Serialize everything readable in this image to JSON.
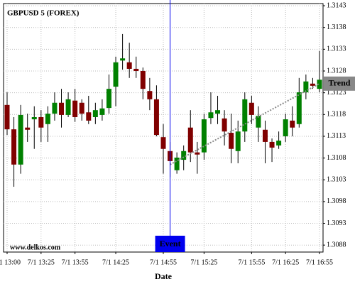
{
  "chart_data": {
    "type": "candlestick",
    "title": "GBPUSD 5 (FOREX)",
    "watermark": "www.delkos.com",
    "x_label": "Date",
    "categories": [
      "7/1 13:00",
      null,
      null,
      null,
      null,
      "7/1 13:25",
      null,
      null,
      null,
      null,
      "7/1 13:55",
      null,
      null,
      null,
      null,
      null,
      "7/1 14:25",
      null,
      null,
      null,
      null,
      null,
      null,
      "7/1 14:55",
      null,
      null,
      null,
      null,
      null,
      "7/1 15:25",
      null,
      null,
      null,
      null,
      null,
      null,
      "7/1 15:55",
      null,
      null,
      null,
      null,
      "7/1 16:25",
      null,
      null,
      null,
      null,
      "7/1 16:55"
    ],
    "open": [
      1.31202,
      1.31146,
      1.31065,
      1.3115,
      1.31169,
      1.31174,
      1.31158,
      1.31182,
      1.31207,
      1.31179,
      1.31212,
      1.31207,
      1.31185,
      1.31174,
      1.31179,
      1.31195,
      1.31244,
      1.31304,
      1.313,
      1.31285,
      1.3128,
      1.31234,
      1.31215,
      1.31128,
      1.31096,
      1.31052,
      1.31076,
      1.3115,
      1.31093,
      1.31093,
      1.31172,
      1.31182,
      1.31171,
      1.31138,
      1.31096,
      1.31141,
      1.31207,
      1.3115,
      1.31145,
      1.31117,
      1.31109,
      1.3113,
      1.31166,
      1.31158,
      1.31231,
      1.31251,
      1.31239
    ],
    "high": [
      1.31231,
      1.31174,
      1.31202,
      1.31182,
      1.31199,
      1.3119,
      1.31199,
      1.31231,
      1.31239,
      1.31231,
      1.31239,
      1.31215,
      1.31223,
      1.31207,
      1.31215,
      1.31272,
      1.31313,
      1.31365,
      1.31345,
      1.31313,
      1.31288,
      1.31264,
      1.31247,
      1.31158,
      1.31117,
      1.31093,
      1.31109,
      1.3119,
      1.31117,
      1.31182,
      1.31231,
      1.31223,
      1.3119,
      1.31182,
      1.31166,
      1.31231,
      1.31223,
      1.31199,
      1.31166,
      1.31125,
      1.31141,
      1.31182,
      1.31199,
      1.31264,
      1.31272,
      1.31264,
      1.31326
    ],
    "low": [
      1.31133,
      1.31014,
      1.31044,
      1.31117,
      1.31101,
      1.31117,
      1.31117,
      1.31166,
      1.3115,
      1.31174,
      1.31163,
      1.31166,
      1.31158,
      1.31158,
      1.31166,
      1.31182,
      1.31199,
      1.31283,
      1.31264,
      1.31264,
      1.31215,
      1.3119,
      1.3113,
      1.31044,
      1.31036,
      1.31044,
      1.31052,
      1.31071,
      1.31044,
      1.31076,
      1.31158,
      1.31158,
      1.31109,
      1.31068,
      1.31068,
      1.31117,
      1.31158,
      1.31117,
      1.31068,
      1.31071,
      1.31101,
      1.31117,
      1.3113,
      1.3115,
      1.31215,
      1.31239,
      1.31231
    ],
    "close": [
      1.31146,
      1.31065,
      1.31179,
      1.31145,
      1.31174,
      1.3115,
      1.31182,
      1.31207,
      1.31179,
      1.31215,
      1.31174,
      1.31182,
      1.31166,
      1.3119,
      1.31194,
      1.31239,
      1.313,
      1.31309,
      1.31285,
      1.3128,
      1.31239,
      1.31215,
      1.31133,
      1.31101,
      1.31073,
      1.31081,
      1.31096,
      1.31093,
      1.31088,
      1.31169,
      1.31185,
      1.3119,
      1.31141,
      1.31101,
      1.31141,
      1.31215,
      1.31179,
      1.31177,
      1.31117,
      1.31104,
      1.3112,
      1.31169,
      1.3115,
      1.31231,
      1.31256,
      1.31246,
      1.3126
    ],
    "up_color": "#008000",
    "down_color": "#800000",
    "ylim": [
      1.30864,
      1.31435
    ],
    "yticks": [
      1.3088,
      1.3093,
      1.3098,
      1.3103,
      1.3108,
      1.3113,
      1.3118,
      1.3123,
      1.3128,
      1.3133,
      1.3138,
      1.3143
    ],
    "grid": true,
    "event": {
      "label": "Event",
      "x": 24,
      "color": "#0000ee"
    },
    "trend": {
      "label": "Trend",
      "x": [
        24,
        46
      ],
      "values": [
        1.31065,
        1.31251
      ],
      "color": "#888888"
    }
  }
}
